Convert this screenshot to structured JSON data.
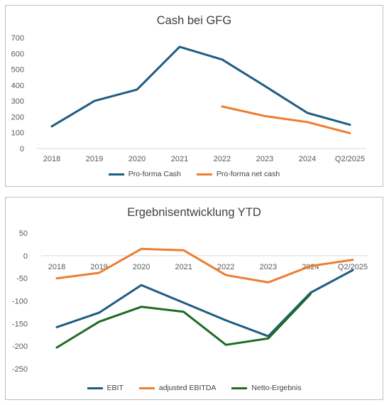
{
  "chart_data": [
    {
      "type": "line",
      "title": "Cash bei GFG",
      "categories": [
        "2018",
        "2019",
        "2020",
        "2021",
        "2022",
        "2023",
        "2024",
        "Q2/2025"
      ],
      "ylim": [
        0,
        700
      ],
      "yticks": [
        0,
        100,
        200,
        300,
        400,
        500,
        600,
        700
      ],
      "grid": false,
      "legend_position": "bottom",
      "series": [
        {
          "name": "Pro-forma Cash",
          "color": "#1f5c82",
          "values": [
            140,
            300,
            372,
            642,
            562,
            395,
            225,
            150
          ]
        },
        {
          "name": "Pro-forma net cash",
          "color": "#ed7d31",
          "values": [
            null,
            null,
            null,
            null,
            265,
            205,
            167,
            97
          ]
        }
      ]
    },
    {
      "type": "line",
      "title": "Ergebnisentwicklung YTD",
      "categories": [
        "2018",
        "2019",
        "2020",
        "2021",
        "2022",
        "2023",
        "2024",
        "Q2/2025"
      ],
      "ylim": [
        -250,
        50
      ],
      "yticks": [
        50,
        0,
        -50,
        -100,
        -150,
        -200,
        -250
      ],
      "grid": false,
      "legend_position": "bottom",
      "series": [
        {
          "name": "EBIT",
          "color": "#1f5c82",
          "values": [
            -158,
            -126,
            -65,
            -104,
            -143,
            -178,
            -82,
            -32
          ]
        },
        {
          "name": "adjusted EBITDA",
          "color": "#ed7d31",
          "values": [
            -50,
            -38,
            15,
            12,
            -43,
            -59,
            -23,
            -9
          ]
        },
        {
          "name": "Netto-Ergebnis",
          "color": "#1e6b24",
          "values": [
            -203,
            -146,
            -113,
            -124,
            -197,
            -183,
            -85,
            null
          ]
        }
      ]
    }
  ]
}
